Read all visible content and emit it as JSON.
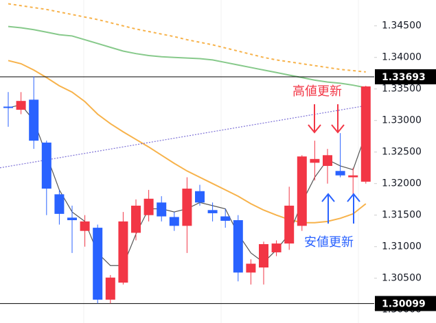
{
  "chart_data": {
    "type": "candlestick",
    "up_color": "#f23645",
    "down_color": "#2962ff",
    "ylim": [
      1.2979,
      1.3491
    ],
    "yticks": [
      {
        "value": 1.345,
        "label": "1.34500"
      },
      {
        "value": 1.34,
        "label": "1.34000"
      },
      {
        "value": 1.335,
        "label": "1.33500"
      },
      {
        "value": 1.33,
        "label": "1.33000"
      },
      {
        "value": 1.325,
        "label": "1.32500"
      },
      {
        "value": 1.32,
        "label": "1.32000"
      },
      {
        "value": 1.315,
        "label": "1.31500"
      },
      {
        "value": 1.31,
        "label": "1.31000"
      },
      {
        "value": 1.305,
        "label": "1.30500"
      },
      {
        "value": 1.3,
        "label": "1.30000"
      }
    ],
    "open": [
      1.3322,
      1.3317,
      1.3333,
      1.3265,
      1.3183,
      1.3146,
      1.3125,
      1.313,
      1.3016,
      1.3043,
      1.3122,
      1.315,
      1.317,
      1.3147,
      1.3133,
      1.3188,
      1.3158,
      1.3148,
      1.3142,
      1.3059,
      1.3067,
      1.3091,
      1.3105,
      1.3133,
      1.3233,
      1.3228,
      1.322,
      1.321,
      1.3203
    ],
    "high": [
      1.3345,
      1.3345,
      1.337,
      1.3268,
      1.319,
      1.3165,
      1.315,
      1.3135,
      1.3055,
      1.3155,
      1.3175,
      1.319,
      1.318,
      1.3155,
      1.321,
      1.3198,
      1.317,
      1.316,
      1.315,
      1.308,
      1.3108,
      1.311,
      1.3195,
      1.3245,
      1.3268,
      1.3255,
      1.328,
      1.3225,
      1.3355
    ],
    "low": [
      1.329,
      1.331,
      1.3255,
      1.315,
      1.3135,
      1.309,
      1.31,
      1.301,
      1.301,
      1.304,
      1.311,
      1.314,
      1.314,
      1.3125,
      1.309,
      1.3165,
      1.314,
      1.313,
      1.3045,
      1.304,
      1.304,
      1.3085,
      1.3095,
      1.3125,
      1.3205,
      1.32,
      1.321,
      1.318,
      1.32
    ],
    "close": [
      1.332,
      1.3331,
      1.3268,
      1.3192,
      1.3152,
      1.3142,
      1.314,
      1.3016,
      1.3051,
      1.314,
      1.3165,
      1.3176,
      1.3148,
      1.3133,
      1.3192,
      1.317,
      1.3153,
      1.3141,
      1.3059,
      1.3073,
      1.3104,
      1.3105,
      1.3165,
      1.3243,
      1.3239,
      1.3245,
      1.3213,
      1.3213,
      1.3354
    ],
    "lines": [
      {
        "color": "#f7b24a",
        "dash": "4 4",
        "values": [
          1.3485,
          1.3482,
          1.3479,
          1.3476,
          1.3472,
          1.3468,
          1.3464,
          1.346,
          1.3455,
          1.345,
          1.3445,
          1.3441,
          1.3437,
          1.3433,
          1.3428,
          1.3424,
          1.342,
          1.3415,
          1.341,
          1.3405,
          1.34,
          1.3396,
          1.3393,
          1.339,
          1.3387,
          1.3384,
          1.3381,
          1.3379,
          1.3377
        ]
      },
      {
        "color": "#86c98a",
        "values": [
          1.3449,
          1.3447,
          1.3444,
          1.344,
          1.3436,
          1.3434,
          1.3428,
          1.3422,
          1.3416,
          1.341,
          1.3406,
          1.3403,
          1.3401,
          1.34,
          1.3399,
          1.3398,
          1.3396,
          1.3392,
          1.3388,
          1.3384,
          1.338,
          1.3376,
          1.3372,
          1.3368,
          1.3364,
          1.3361,
          1.3359,
          1.3356,
          1.3352
        ]
      },
      {
        "color": "#f7b24a",
        "values": [
          1.3395,
          1.339,
          1.338,
          1.3368,
          1.3355,
          1.3345,
          1.333,
          1.331,
          1.3295,
          1.3282,
          1.327,
          1.3258,
          1.3245,
          1.3232,
          1.322,
          1.321,
          1.32,
          1.319,
          1.318,
          1.3168,
          1.3158,
          1.315,
          1.3143,
          1.3138,
          1.3138,
          1.314,
          1.3145,
          1.3152,
          1.3168
        ]
      },
      {
        "color": "#555555",
        "values": [
          1.332,
          1.3325,
          1.33,
          1.3245,
          1.319,
          1.3155,
          1.314,
          1.309,
          1.307,
          1.307,
          1.312,
          1.316,
          1.316,
          1.3155,
          1.316,
          1.317,
          1.3165,
          1.316,
          1.312,
          1.309,
          1.3075,
          1.3095,
          1.312,
          1.317,
          1.321,
          1.3238,
          1.3228,
          1.3222,
          1.3279
        ]
      }
    ],
    "trend_line": {
      "color": "#7b6fd6",
      "values": [
        1.3225,
        1.3323
      ]
    },
    "price_lines": [
      1.33693,
      1.30099
    ],
    "annotations": [
      {
        "text": "高値更新",
        "color": "#f23645"
      },
      {
        "text": "安値更新",
        "color": "#2962ff"
      }
    ]
  }
}
